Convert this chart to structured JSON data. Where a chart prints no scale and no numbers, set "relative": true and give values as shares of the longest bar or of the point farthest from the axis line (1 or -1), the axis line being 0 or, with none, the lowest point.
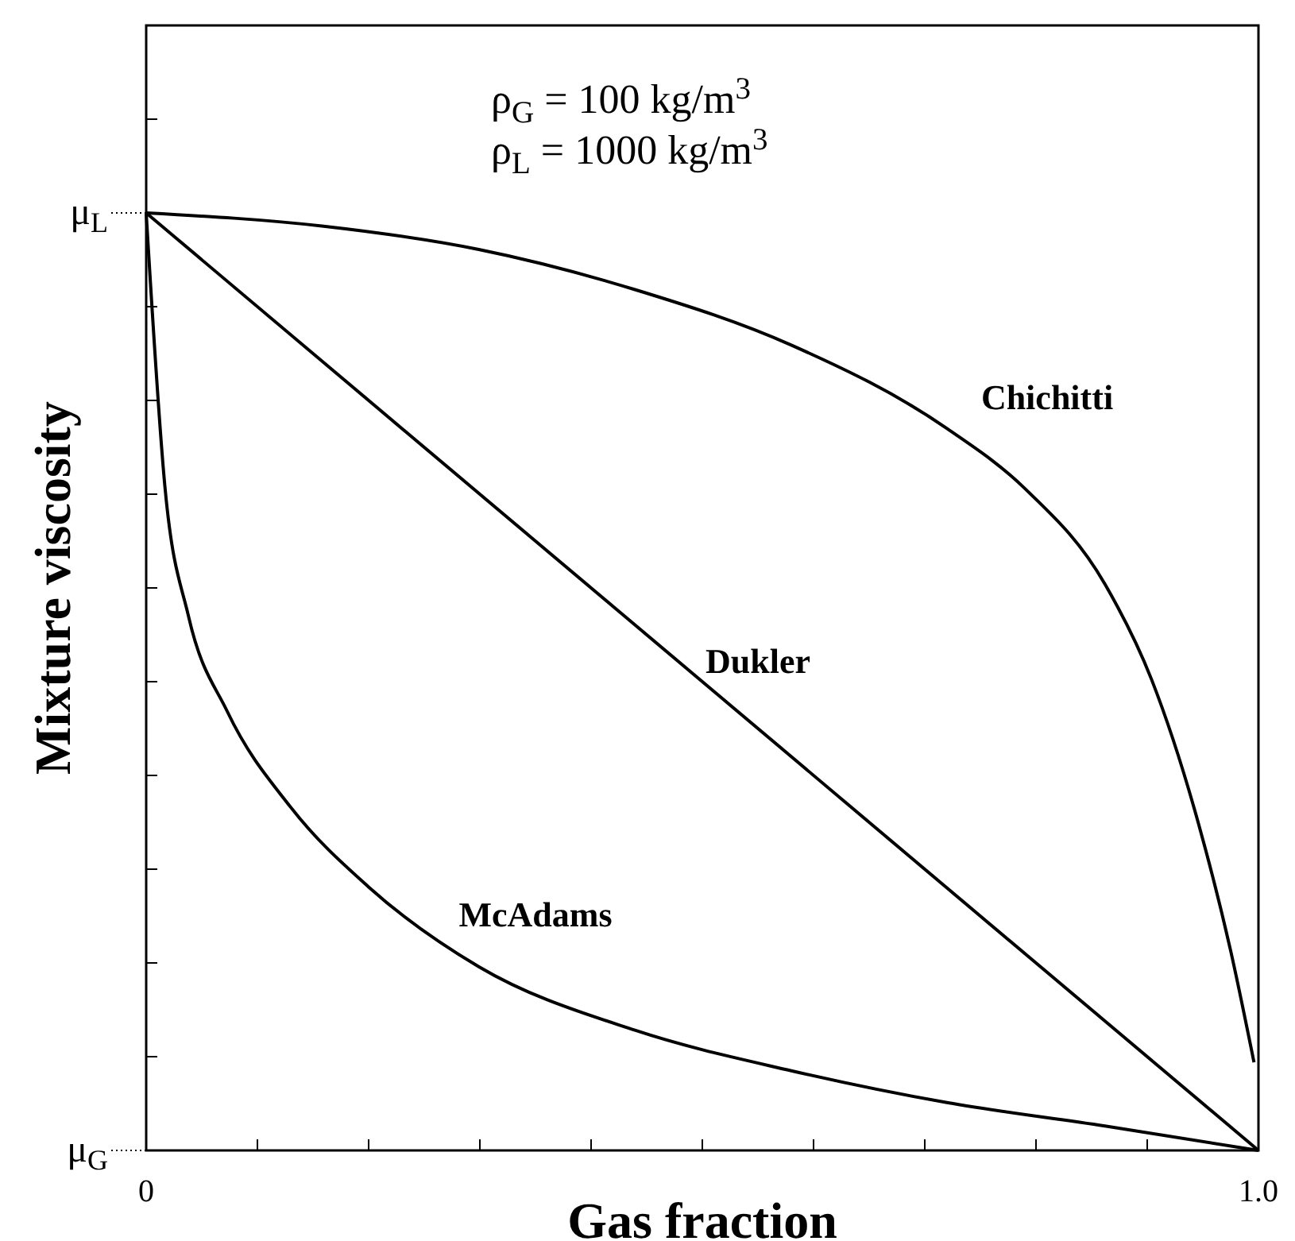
{
  "chart_data": {
    "type": "line",
    "xlabel": "Gas fraction",
    "ylabel": "Mixture viscosity",
    "relative": true,
    "xlim": [
      0,
      1
    ],
    "xticks": [
      0,
      {
        "value": 0.1,
        "label": null
      },
      {
        "value": 0.2,
        "label": null
      },
      {
        "value": 0.3,
        "label": null
      },
      {
        "value": 0.4,
        "label": null
      },
      {
        "value": 0.5,
        "label": null
      },
      {
        "value": 0.6,
        "label": null
      },
      {
        "value": 0.7,
        "label": null
      },
      {
        "value": 0.8,
        "label": null
      },
      {
        "value": 0.9,
        "label": null
      },
      {
        "value": 1,
        "label": "1.0"
      }
    ],
    "marker": "none",
    "line_style": "solid",
    "series": [
      {
        "name": "Chichitti",
        "color": "#000000",
        "x": [
          0,
          0.158,
          0.299,
          0.44,
          0.58,
          0.72,
          0.79,
          0.862,
          0.904,
          0.946,
          0.975,
          0.996
        ],
        "values": [
          1,
          0.986,
          0.961,
          0.918,
          0.859,
          0.77,
          0.706,
          0.604,
          0.502,
          0.349,
          0.213,
          0.094
        ]
      },
      {
        "name": "Dukler",
        "color": "#000000",
        "x": [
          0,
          1
        ],
        "values": [
          1,
          0
        ]
      },
      {
        "name": "McAdams",
        "color": "#000000",
        "x": [
          0,
          0.017,
          0.038,
          0.073,
          0.13,
          0.2,
          0.299,
          0.44,
          0.58,
          0.72,
          0.862,
          1
        ],
        "values": [
          1,
          0.706,
          0.57,
          0.468,
          0.366,
          0.281,
          0.196,
          0.128,
          0.085,
          0.051,
          0.026,
          0
        ]
      }
    ],
    "annotations": [
      "ρ$_{G}$ = 100 kg/m$^{3}$",
      "ρ$_{L}$ = 1000 kg/m$^{3}$",
      "μ$_{L}$",
      "μ$_{G}$"
    ]
  }
}
